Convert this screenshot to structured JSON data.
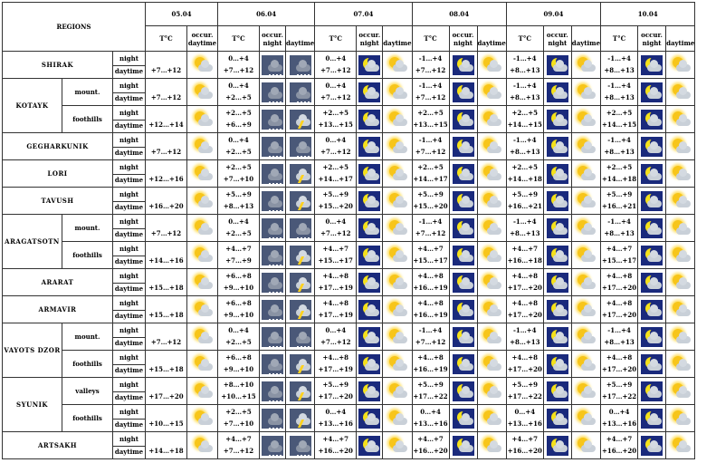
{
  "header": {
    "regions": "REGIONS",
    "temp_label": "T°C",
    "occur_label": "occur.",
    "daytime_label": "daytime",
    "night_label": "night",
    "dates": [
      "05.04",
      "06.04",
      "07.04",
      "08.04",
      "09.04",
      "10.04"
    ]
  },
  "row_labels": {
    "night": "night",
    "daytime": "daytime"
  },
  "regions": [
    {
      "name": "SHIRAK",
      "subs": [
        {
          "sub": "",
          "days": [
            [
              "",
              "+7…+12",
              [
                "",
                "cloud-sun"
              ]
            ],
            [
              "0…+4",
              "+7…+12",
              [
                "rain",
                "rain"
              ]
            ],
            [
              "0…+4",
              "+7…+12",
              [
                "moon-cloud",
                "sun-cloud"
              ]
            ],
            [
              "-1…+4",
              "+7…+12",
              [
                "moon-cloud",
                "sun-cloud"
              ]
            ],
            [
              "-1…+4",
              "+8…+13",
              [
                "moon-cloud",
                "sun-cloud"
              ]
            ],
            [
              "-1…+4",
              "+8…+13",
              [
                "moon-cloud",
                "sun-cloud"
              ]
            ]
          ]
        }
      ]
    },
    {
      "name": "KOTAYK",
      "subs": [
        {
          "sub": "mount.",
          "days": [
            [
              "",
              "+7…+12",
              [
                "",
                "cloud-sun"
              ]
            ],
            [
              "0…+4",
              "+2…+5",
              [
                "rain",
                "rain"
              ]
            ],
            [
              "0…+4",
              "+7…+12",
              [
                "moon-cloud",
                "sun-cloud"
              ]
            ],
            [
              "-1…+4",
              "+7…+12",
              [
                "moon-cloud",
                "sun-cloud"
              ]
            ],
            [
              "-1…+4",
              "+8…+13",
              [
                "moon-cloud",
                "sun-cloud"
              ]
            ],
            [
              "-1…+4",
              "+8…+13",
              [
                "moon-cloud",
                "sun-cloud"
              ]
            ]
          ]
        },
        {
          "sub": "foothills",
          "days": [
            [
              "",
              "+12…+14",
              [
                "",
                "cloud-sun"
              ]
            ],
            [
              "+2…+5",
              "+6…+9",
              [
                "rain",
                "thunder"
              ]
            ],
            [
              "+2…+5",
              "+13…+15",
              [
                "moon-cloud",
                "sun-cloud"
              ]
            ],
            [
              "+2…+5",
              "+13…+15",
              [
                "moon-cloud",
                "sun-cloud"
              ]
            ],
            [
              "+2…+5",
              "+14…+15",
              [
                "moon-cloud",
                "sun-cloud"
              ]
            ],
            [
              "+2…+5",
              "+14…+15",
              [
                "moon-cloud",
                "sun-cloud"
              ]
            ]
          ]
        }
      ]
    },
    {
      "name": "GEGHARKUNIK",
      "subs": [
        {
          "sub": "",
          "days": [
            [
              "",
              "+7…+12",
              [
                "",
                "cloud-sun"
              ]
            ],
            [
              "0…+4",
              "+2…+5",
              [
                "rain",
                "rain"
              ]
            ],
            [
              "0…+4",
              "+7…+12",
              [
                "moon-cloud",
                "sun-cloud"
              ]
            ],
            [
              "-1…+4",
              "+7…+12",
              [
                "moon-cloud",
                "sun-cloud"
              ]
            ],
            [
              "-1…+4",
              "+8…+13",
              [
                "moon-cloud",
                "sun-cloud"
              ]
            ],
            [
              "-1…+4",
              "+8…+13",
              [
                "moon-cloud",
                "sun-cloud"
              ]
            ]
          ]
        }
      ]
    },
    {
      "name": "LORI",
      "subs": [
        {
          "sub": "",
          "days": [
            [
              "",
              "+12…+16",
              [
                "",
                "cloud-sun"
              ]
            ],
            [
              "+2…+5",
              "+7…+10",
              [
                "rain",
                "thunder"
              ]
            ],
            [
              "+2…+5",
              "+14…+17",
              [
                "moon-cloud",
                "sun-cloud"
              ]
            ],
            [
              "+2…+5",
              "+14…+17",
              [
                "moon-cloud",
                "sun-cloud"
              ]
            ],
            [
              "+2…+5",
              "+14…+18",
              [
                "moon-cloud",
                "sun-cloud"
              ]
            ],
            [
              "+2…+5",
              "+14…+18",
              [
                "moon-cloud",
                "sun-cloud"
              ]
            ]
          ]
        }
      ]
    },
    {
      "name": "TAVUSH",
      "subs": [
        {
          "sub": "",
          "days": [
            [
              "",
              "+16…+20",
              [
                "",
                "cloud-sun"
              ]
            ],
            [
              "+5…+9",
              "+8…+13",
              [
                "rain",
                "thunder"
              ]
            ],
            [
              "+5…+9",
              "+15…+20",
              [
                "moon-cloud",
                "sun-cloud"
              ]
            ],
            [
              "+5…+9",
              "+15…+20",
              [
                "moon-cloud",
                "sun-cloud"
              ]
            ],
            [
              "+5…+9",
              "+16…+21",
              [
                "moon-cloud",
                "sun-cloud"
              ]
            ],
            [
              "+5…+9",
              "+16…+21",
              [
                "moon-cloud",
                "sun-cloud"
              ]
            ]
          ]
        }
      ]
    },
    {
      "name": "ARAGATSOTN",
      "subs": [
        {
          "sub": "mount.",
          "days": [
            [
              "",
              "+7…+12",
              [
                "",
                "cloud-sun"
              ]
            ],
            [
              "0…+4",
              "+2…+5",
              [
                "rain",
                "rain"
              ]
            ],
            [
              "0…+4",
              "+7…+12",
              [
                "moon-cloud",
                "sun-cloud"
              ]
            ],
            [
              "-1…+4",
              "+7…+12",
              [
                "moon-cloud",
                "sun-cloud"
              ]
            ],
            [
              "-1…+4",
              "+8…+13",
              [
                "moon-cloud",
                "sun-cloud"
              ]
            ],
            [
              "-1…+4",
              "+8…+13",
              [
                "moon-cloud",
                "sun-cloud"
              ]
            ]
          ]
        },
        {
          "sub": "foothills",
          "days": [
            [
              "",
              "+14…+16",
              [
                "",
                "cloud-sun"
              ]
            ],
            [
              "+4…+7",
              "+7…+9",
              [
                "rain",
                "thunder"
              ]
            ],
            [
              "+4…+7",
              "+15…+17",
              [
                "moon-cloud",
                "sun-cloud"
              ]
            ],
            [
              "+4…+7",
              "+15…+17",
              [
                "moon-cloud",
                "sun-cloud"
              ]
            ],
            [
              "+4…+7",
              "+16…+18",
              [
                "moon-cloud",
                "sun-cloud"
              ]
            ],
            [
              "+4…+7",
              "+15…+17",
              [
                "moon-cloud",
                "sun-cloud"
              ]
            ]
          ]
        }
      ]
    },
    {
      "name": "ARARAT",
      "subs": [
        {
          "sub": "",
          "days": [
            [
              "",
              "+15…+18",
              [
                "",
                "cloud-sun"
              ]
            ],
            [
              "+6…+8",
              "+9…+10",
              [
                "rain",
                "thunder"
              ]
            ],
            [
              "+4…+8",
              "+17…+19",
              [
                "moon-cloud",
                "sun-cloud"
              ]
            ],
            [
              "+4…+8",
              "+16…+19",
              [
                "moon-cloud",
                "sun-cloud"
              ]
            ],
            [
              "+4…+8",
              "+17…+20",
              [
                "moon-cloud",
                "sun-cloud"
              ]
            ],
            [
              "+4…+8",
              "+17…+20",
              [
                "moon-cloud",
                "sun-cloud"
              ]
            ]
          ]
        }
      ]
    },
    {
      "name": "ARMAVIR",
      "subs": [
        {
          "sub": "",
          "days": [
            [
              "",
              "+15…+18",
              [
                "",
                "cloud-sun"
              ]
            ],
            [
              "+6…+8",
              "+9…+10",
              [
                "rain",
                "thunder"
              ]
            ],
            [
              "+4…+8",
              "+17…+19",
              [
                "moon-cloud",
                "sun-cloud"
              ]
            ],
            [
              "+4…+8",
              "+16…+19",
              [
                "moon-cloud",
                "sun-cloud"
              ]
            ],
            [
              "+4…+8",
              "+17…+20",
              [
                "moon-cloud",
                "sun-cloud"
              ]
            ],
            [
              "+4…+8",
              "+17…+20",
              [
                "moon-cloud",
                "sun-cloud"
              ]
            ]
          ]
        }
      ]
    },
    {
      "name": "VAYOTS DZOR",
      "subs": [
        {
          "sub": "mount.",
          "days": [
            [
              "",
              "+7…+12",
              [
                "",
                "cloud-sun"
              ]
            ],
            [
              "0…+4",
              "+2…+5",
              [
                "rain",
                "rain"
              ]
            ],
            [
              "0…+4",
              "+7…+12",
              [
                "moon-cloud",
                "sun-cloud"
              ]
            ],
            [
              "-1…+4",
              "+7…+12",
              [
                "moon-cloud",
                "sun-cloud"
              ]
            ],
            [
              "-1…+4",
              "+8…+13",
              [
                "moon-cloud",
                "sun-cloud"
              ]
            ],
            [
              "-1…+4",
              "+8…+13",
              [
                "moon-cloud",
                "sun-cloud"
              ]
            ]
          ]
        },
        {
          "sub": "foothills",
          "days": [
            [
              "",
              "+15…+18",
              [
                "",
                "cloud-sun"
              ]
            ],
            [
              "+6…+8",
              "+9…+10",
              [
                "rain",
                "thunder"
              ]
            ],
            [
              "+4…+8",
              "+17…+19",
              [
                "moon-cloud",
                "sun-cloud"
              ]
            ],
            [
              "+4…+8",
              "+16…+19",
              [
                "moon-cloud",
                "sun-cloud"
              ]
            ],
            [
              "+4…+8",
              "+17…+20",
              [
                "moon-cloud",
                "sun-cloud"
              ]
            ],
            [
              "+4…+8",
              "+17…+20",
              [
                "moon-cloud",
                "sun-cloud"
              ]
            ]
          ]
        }
      ]
    },
    {
      "name": "SYUNIK",
      "subs": [
        {
          "sub": "valleys",
          "days": [
            [
              "",
              "+17…+20",
              [
                "",
                "cloud-sun"
              ]
            ],
            [
              "+8…+10",
              "+10…+15",
              [
                "rain",
                "thunder"
              ]
            ],
            [
              "+5…+9",
              "+17…+20",
              [
                "moon-cloud",
                "sun-cloud"
              ]
            ],
            [
              "+5…+9",
              "+17…+22",
              [
                "moon-cloud",
                "sun-cloud"
              ]
            ],
            [
              "+5…+9",
              "+17…+22",
              [
                "moon-cloud",
                "sun-cloud"
              ]
            ],
            [
              "+5…+9",
              "+17…+22",
              [
                "moon-cloud",
                "sun-cloud"
              ]
            ]
          ]
        },
        {
          "sub": "foothills",
          "days": [
            [
              "",
              "+10…+15",
              [
                "",
                "cloud-sun"
              ]
            ],
            [
              "+2…+5",
              "+7…+10",
              [
                "rain",
                "thunder"
              ]
            ],
            [
              "0…+4",
              "+13…+16",
              [
                "moon-cloud",
                "sun-cloud"
              ]
            ],
            [
              "0…+4",
              "+13…+16",
              [
                "moon-cloud",
                "sun-cloud"
              ]
            ],
            [
              "0…+4",
              "+13…+16",
              [
                "moon-cloud",
                "sun-cloud"
              ]
            ],
            [
              "0…+4",
              "+13…+16",
              [
                "moon-cloud",
                "sun-cloud"
              ]
            ]
          ]
        }
      ]
    },
    {
      "name": "ARTSAKH",
      "subs": [
        {
          "sub": "",
          "days": [
            [
              "",
              "+14…+18",
              [
                "",
                "sun-cloud"
              ]
            ],
            [
              "+4…+7",
              "+7…+12",
              [
                "rain",
                "rain"
              ]
            ],
            [
              "+4…+7",
              "+16…+20",
              [
                "moon-cloud",
                "sun-cloud"
              ]
            ],
            [
              "+4…+7",
              "+16…+20",
              [
                "moon-cloud",
                "sun-cloud"
              ]
            ],
            [
              "+4…+7",
              "+16…+20",
              [
                "moon-cloud",
                "sun-cloud"
              ]
            ],
            [
              "+4…+7",
              "+16…+20",
              [
                "moon-cloud",
                "sun-cloud"
              ]
            ]
          ]
        }
      ]
    }
  ]
}
